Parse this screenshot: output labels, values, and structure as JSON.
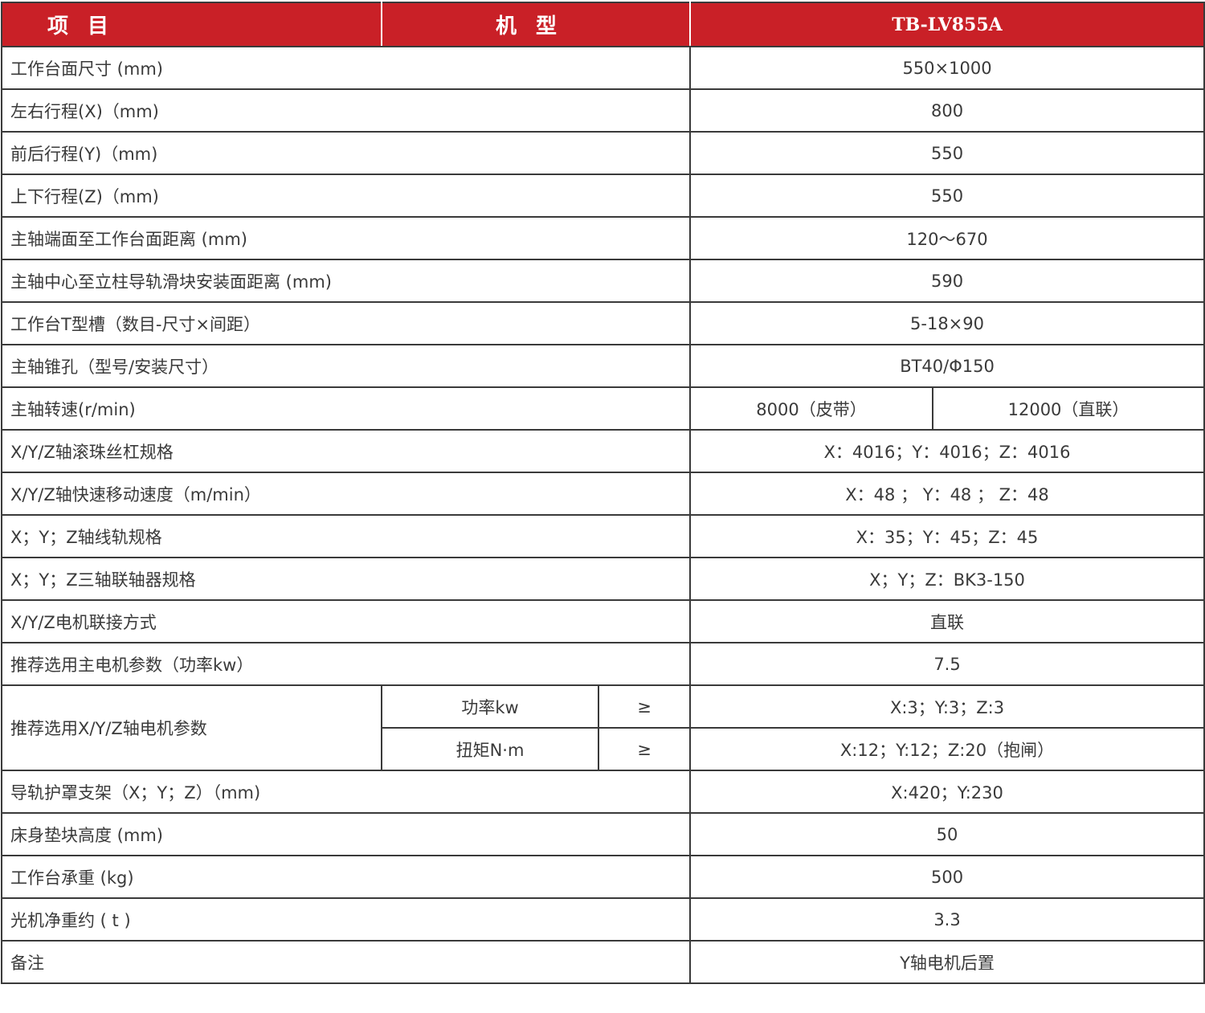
{
  "header": {
    "item": "项目",
    "model_label": "机型",
    "model": "TB-LV855A"
  },
  "rows": [
    {
      "label": "工作台面尺寸 (mm)",
      "value": "550×1000"
    },
    {
      "label": "左右行程(X)（mm)",
      "value": "800"
    },
    {
      "label": "前后行程(Y)（mm)",
      "value": "550"
    },
    {
      "label": "上下行程(Z)（mm)",
      "value": "550"
    },
    {
      "label": "主轴端面至工作台面距离 (mm)",
      "value": "120～670"
    },
    {
      "label": "主轴中心至立柱导轨滑块安装面距离 (mm)",
      "value": "590"
    },
    {
      "label": "工作台T型槽（数目-尺寸×间距）",
      "value": "5-18×90"
    },
    {
      "label": "主轴锥孔（型号/安装尺寸）",
      "value": "BT40/Φ150"
    }
  ],
  "speed": {
    "label": "主轴转速(r/min)",
    "value1": "8000（皮带）",
    "value2": "12000（直联）"
  },
  "rows2": [
    {
      "label": "X/Y/Z轴滚珠丝杠规格",
      "value": "X：4016；Y：4016；Z：4016"
    },
    {
      "label": "X/Y/Z轴快速移动速度（m/min）",
      "value": "X：48 ； Y：48 ； Z：48"
    },
    {
      "label": "X；Y；Z轴线轨规格",
      "value": "X：35；Y：45；Z：45"
    },
    {
      "label": "X；Y；Z三轴联轴器规格",
      "value": "X；Y；Z：BK3-150"
    },
    {
      "label": "X/Y/Z电机联接方式",
      "value": "直联"
    },
    {
      "label": "推荐选用主电机参数（功率kw）",
      "value": "7.5"
    }
  ],
  "motor": {
    "label": "推荐选用X/Y/Z轴电机参数",
    "sub": [
      {
        "name": "功率kw",
        "op": "≥",
        "value": "X:3；Y:3；Z:3"
      },
      {
        "name": "扭矩N·m",
        "op": "≥",
        "value": "X:12；Y:12；Z:20（抱闸）"
      }
    ]
  },
  "rows3": [
    {
      "label": "导轨护罩支架（X；Y；Z）（mm)",
      "value": "X:420；Y:230"
    },
    {
      "label": "床身垫块高度 (mm)",
      "value": "50"
    },
    {
      "label": "工作台承重 (kg)",
      "value": "500"
    },
    {
      "label": "光机净重约 ( t )",
      "value": "3.3"
    },
    {
      "label": "备注",
      "value": "Y轴电机后置"
    }
  ],
  "colors": {
    "header_bg": "#c92027",
    "text": "#3a3a3a",
    "border": "#3a3a3a"
  }
}
